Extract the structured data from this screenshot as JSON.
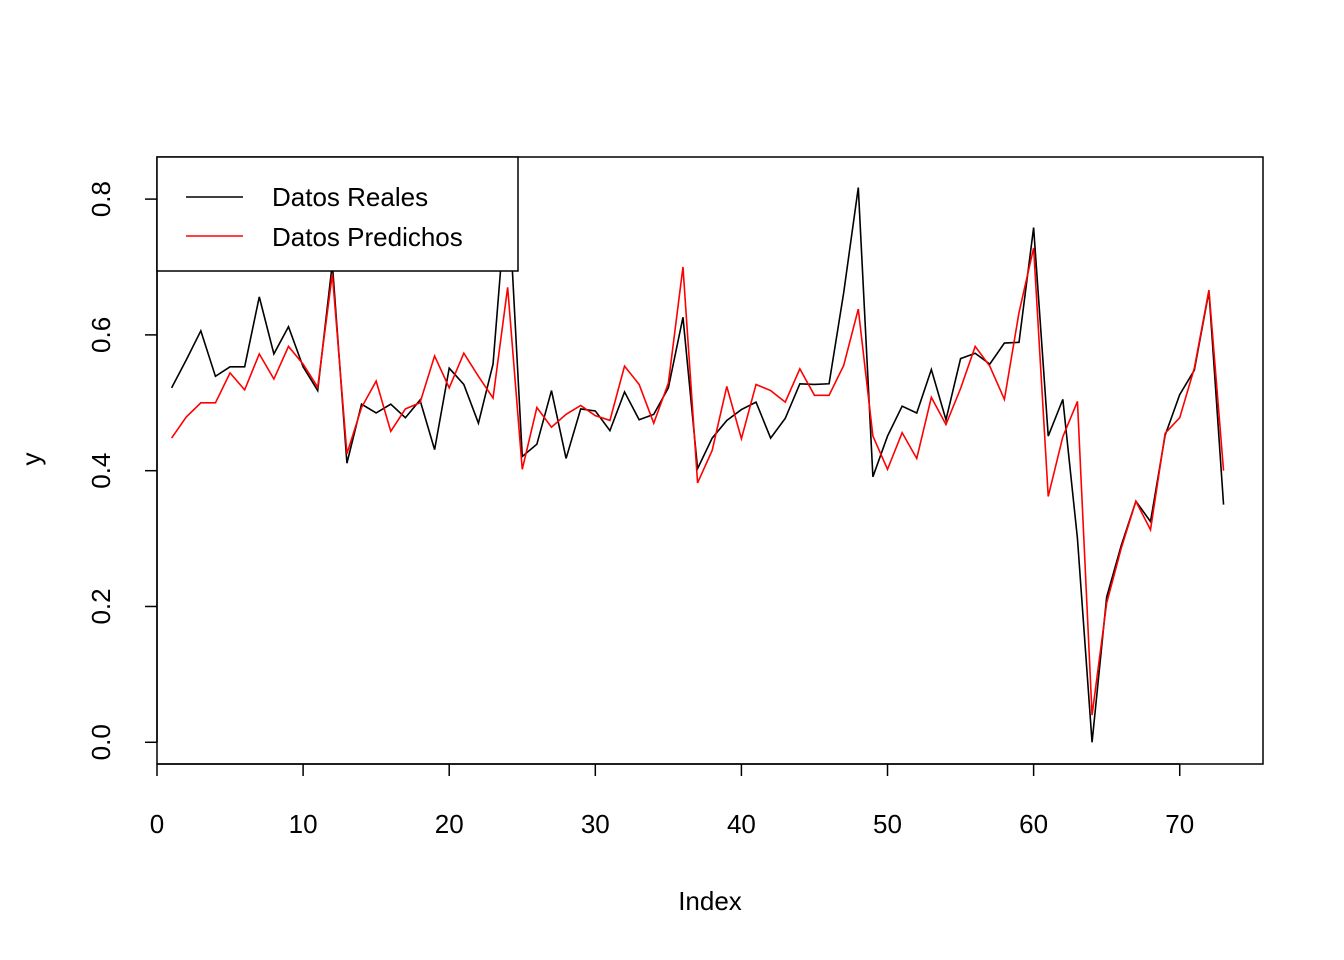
{
  "chart_data": {
    "type": "line",
    "title": "",
    "xlabel": "Index",
    "ylabel": "y",
    "xlim": [
      0,
      75.7
    ],
    "ylim": [
      -0.032,
      0.862
    ],
    "x_ticks": [
      0,
      10,
      20,
      30,
      40,
      50,
      60,
      70
    ],
    "x_tick_labels": [
      "0",
      "10",
      "20",
      "30",
      "40",
      "50",
      "60",
      "70"
    ],
    "y_ticks": [
      0.0,
      0.2,
      0.4,
      0.6,
      0.8
    ],
    "y_tick_labels": [
      "0.0",
      "0.2",
      "0.4",
      "0.6",
      "0.8"
    ],
    "grid": false,
    "legend_position": "top-left",
    "x": [
      1,
      2,
      3,
      4,
      5,
      6,
      7,
      8,
      9,
      10,
      11,
      12,
      13,
      14,
      15,
      16,
      17,
      18,
      19,
      20,
      21,
      22,
      23,
      24,
      25,
      26,
      27,
      28,
      29,
      30,
      31,
      32,
      33,
      34,
      35,
      36,
      37,
      38,
      39,
      40,
      41,
      42,
      43,
      44,
      45,
      46,
      47,
      48,
      49,
      50,
      51,
      52,
      53,
      54,
      55,
      56,
      57,
      58,
      59,
      60,
      61,
      62,
      63,
      64,
      65,
      66,
      67,
      68,
      69,
      70,
      71,
      72,
      73
    ],
    "series": [
      {
        "name": "Datos Reales",
        "color": "#000000",
        "values": [
          0.522,
          0.563,
          0.606,
          0.539,
          0.553,
          0.553,
          0.656,
          0.572,
          0.612,
          0.553,
          0.518,
          0.705,
          0.411,
          0.498,
          0.485,
          0.498,
          0.478,
          0.504,
          0.431,
          0.551,
          0.527,
          0.47,
          0.557,
          0.826,
          0.421,
          0.439,
          0.518,
          0.418,
          0.491,
          0.488,
          0.459,
          0.516,
          0.475,
          0.483,
          0.522,
          0.626,
          0.403,
          0.448,
          0.474,
          0.49,
          0.501,
          0.448,
          0.477,
          0.528,
          0.527,
          0.528,
          0.662,
          0.817,
          0.391,
          0.451,
          0.495,
          0.485,
          0.549,
          0.475,
          0.565,
          0.573,
          0.557,
          0.588,
          0.589,
          0.758,
          0.451,
          0.505,
          0.3,
          0.0,
          0.214,
          0.29,
          0.355,
          0.325,
          0.452,
          0.512,
          0.548,
          0.664,
          0.35
        ]
      },
      {
        "name": "Datos Predichos",
        "color": "#ff0000",
        "values": [
          0.448,
          0.479,
          0.5,
          0.5,
          0.544,
          0.519,
          0.572,
          0.535,
          0.583,
          0.557,
          0.523,
          0.69,
          0.425,
          0.493,
          0.532,
          0.458,
          0.491,
          0.5,
          0.569,
          0.522,
          0.573,
          0.539,
          0.507,
          0.67,
          0.402,
          0.493,
          0.464,
          0.483,
          0.496,
          0.481,
          0.474,
          0.554,
          0.527,
          0.47,
          0.529,
          0.7,
          0.382,
          0.43,
          0.524,
          0.447,
          0.527,
          0.518,
          0.501,
          0.55,
          0.511,
          0.511,
          0.555,
          0.638,
          0.451,
          0.402,
          0.456,
          0.418,
          0.508,
          0.468,
          0.521,
          0.583,
          0.554,
          0.505,
          0.633,
          0.728,
          0.362,
          0.45,
          0.502,
          0.04,
          0.205,
          0.286,
          0.355,
          0.313,
          0.455,
          0.478,
          0.551,
          0.666,
          0.4
        ]
      }
    ]
  }
}
